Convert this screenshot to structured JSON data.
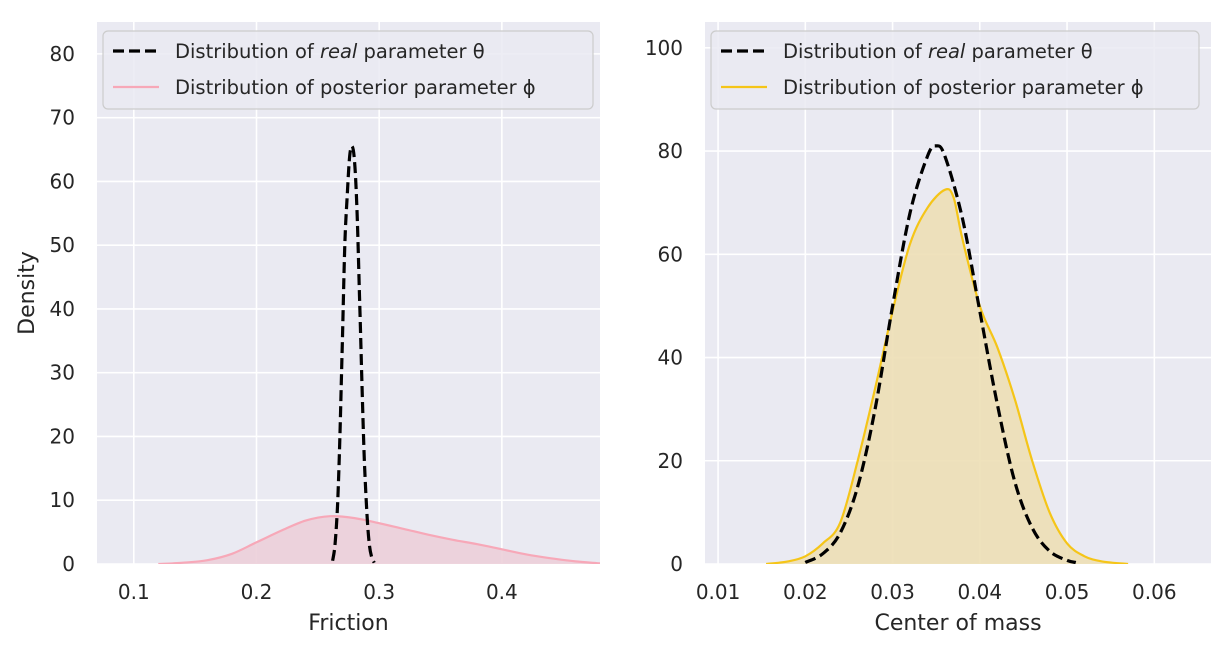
{
  "chart_data": [
    {
      "type": "line",
      "xlabel": "Friction",
      "ylabel": "Density",
      "xlim": [
        0.07,
        0.48
      ],
      "ylim": [
        0,
        85
      ],
      "xticks": [
        "0.1",
        "0.2",
        "0.3",
        "0.4"
      ],
      "yticks": [
        "0",
        "10",
        "20",
        "30",
        "40",
        "50",
        "60",
        "70",
        "80"
      ],
      "grid": true,
      "legend_position": "top",
      "series": [
        {
          "name_prefix": "Distribution of ",
          "name_emph": "real",
          "name_suffix": " parameter θ",
          "color": "#000000",
          "style": "dashed",
          "x": [
            0.262,
            0.264,
            0.266,
            0.268,
            0.27,
            0.272,
            0.274,
            0.276,
            0.278,
            0.28,
            0.282,
            0.284,
            0.286,
            0.288,
            0.29,
            0.292,
            0.294,
            0.296
          ],
          "y": [
            0.5,
            3,
            9,
            20,
            35,
            50,
            58,
            64,
            65.5,
            63,
            55,
            42,
            28,
            16,
            8,
            3,
            1,
            0.2
          ]
        },
        {
          "name_prefix": "Distribution of posterior parameter ϕ",
          "name_emph": "",
          "name_suffix": "",
          "color": "#f7a8b8",
          "fill": "#eccfd9",
          "style": "solid",
          "x": [
            0.12,
            0.14,
            0.16,
            0.18,
            0.2,
            0.22,
            0.24,
            0.26,
            0.28,
            0.3,
            0.32,
            0.34,
            0.36,
            0.38,
            0.4,
            0.42,
            0.44,
            0.46,
            0.48
          ],
          "y": [
            0.0,
            0.2,
            0.6,
            1.6,
            3.4,
            5.2,
            6.8,
            7.5,
            7.2,
            6.4,
            5.5,
            4.6,
            3.8,
            3.1,
            2.3,
            1.5,
            0.9,
            0.4,
            0.1
          ]
        }
      ]
    },
    {
      "type": "line",
      "xlabel": "Center of mass",
      "ylabel": "",
      "xlim": [
        0.0085,
        0.0665
      ],
      "ylim": [
        0,
        105
      ],
      "xticks": [
        "0.01",
        "0.02",
        "0.03",
        "0.04",
        "0.05",
        "0.06"
      ],
      "yticks": [
        "0",
        "20",
        "40",
        "60",
        "80",
        "100"
      ],
      "grid": true,
      "legend_position": "top",
      "series": [
        {
          "name_prefix": "Distribution of ",
          "name_emph": "real",
          "name_suffix": " parameter θ",
          "color": "#000000",
          "style": "dashed",
          "x": [
            0.02,
            0.022,
            0.024,
            0.026,
            0.028,
            0.03,
            0.032,
            0.034,
            0.035,
            0.036,
            0.038,
            0.04,
            0.042,
            0.044,
            0.046,
            0.048,
            0.05,
            0.051
          ],
          "y": [
            0.3,
            2,
            6,
            15,
            30,
            50,
            68,
            79,
            81,
            79,
            67,
            49,
            31,
            16,
            7,
            2.5,
            0.7,
            0.3
          ]
        },
        {
          "name_prefix": "Distribution of posterior parameter ϕ",
          "name_emph": "",
          "name_suffix": "",
          "color": "#f5c518",
          "fill": "#eddfb5",
          "style": "solid",
          "x": [
            0.0155,
            0.018,
            0.02,
            0.022,
            0.024,
            0.026,
            0.028,
            0.03,
            0.032,
            0.034,
            0.036,
            0.037,
            0.038,
            0.04,
            0.042,
            0.044,
            0.046,
            0.048,
            0.05,
            0.052,
            0.054,
            0.057
          ],
          "y": [
            0,
            0.5,
            1.5,
            4,
            8,
            20,
            34,
            49,
            62,
            69,
            72.5,
            71,
            63,
            50,
            42,
            32,
            20,
            10,
            4,
            1.5,
            0.5,
            0
          ]
        }
      ]
    }
  ]
}
